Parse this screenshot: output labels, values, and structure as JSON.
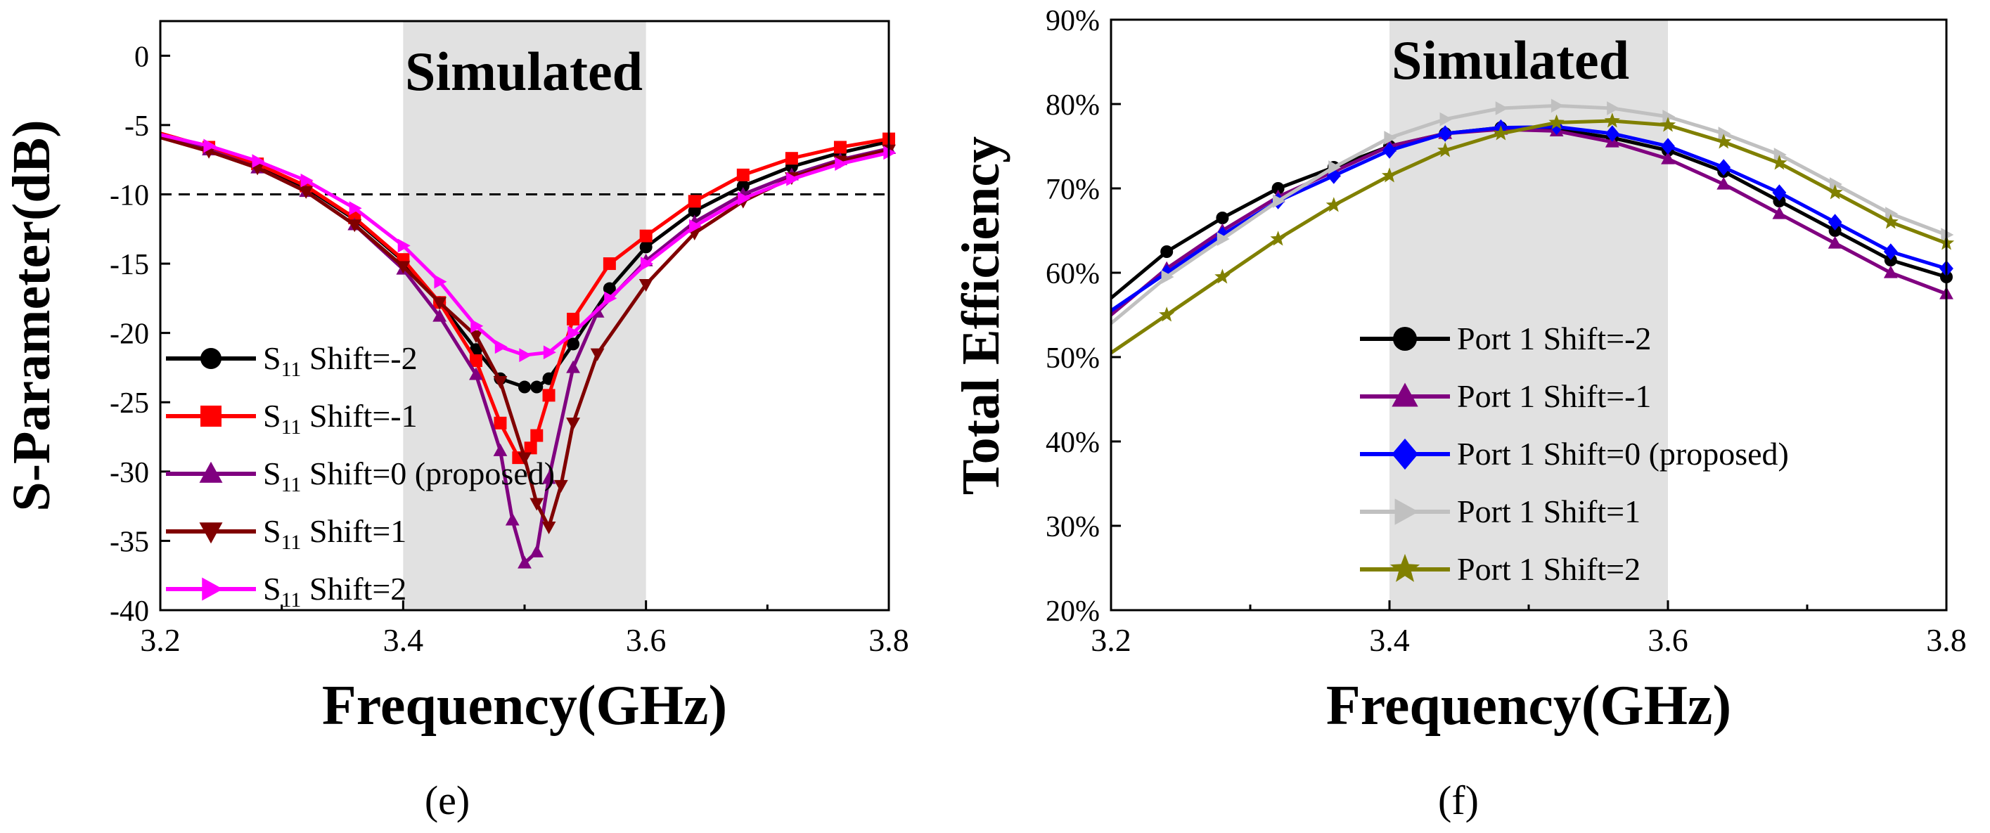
{
  "chart_data": [
    {
      "id": "e",
      "type": "line",
      "caption": "(e)",
      "annotation": "Simulated",
      "xlabel": "Frequency(GHz)",
      "ylabel": "S-Parameter(dB)",
      "xlim": [
        3.2,
        3.8
      ],
      "ylim": [
        -40,
        2.5
      ],
      "xticks": [
        3.2,
        3.4,
        3.6,
        3.8
      ],
      "xtick_labels": [
        "3.2",
        "3.4",
        "3.6",
        "3.8"
      ],
      "yticks": [
        0,
        -5,
        -10,
        -15,
        -20,
        -25,
        -30,
        -35,
        -40
      ],
      "ytick_labels": [
        "0",
        "-5",
        "-10",
        "-15",
        "-20",
        "-25",
        "-30",
        "-35",
        "-40"
      ],
      "shaded_band": [
        3.4,
        3.6
      ],
      "reference_line": -10,
      "legend_position": "middle-left",
      "series": [
        {
          "name": "S11 Shift=-2",
          "prefix": "S",
          "sub": "11",
          "suffix": " Shift=-2",
          "color": "#000000",
          "marker": "circle",
          "x": [
            3.2,
            3.24,
            3.28,
            3.32,
            3.36,
            3.4,
            3.43,
            3.46,
            3.48,
            3.5,
            3.51,
            3.52,
            3.54,
            3.57,
            3.6,
            3.64,
            3.68,
            3.72,
            3.76,
            3.8
          ],
          "y": [
            -5.8,
            -6.7,
            -7.9,
            -9.5,
            -11.8,
            -14.8,
            -17.8,
            -21.2,
            -23.3,
            -23.9,
            -23.9,
            -23.3,
            -20.8,
            -16.8,
            -13.8,
            -11.2,
            -9.4,
            -8.0,
            -7.0,
            -6.2
          ]
        },
        {
          "name": "S11 Shift=-1",
          "prefix": "S",
          "sub": "11",
          "suffix": " Shift=-1",
          "color": "#ff0000",
          "marker": "square",
          "x": [
            3.2,
            3.24,
            3.28,
            3.32,
            3.36,
            3.4,
            3.43,
            3.46,
            3.48,
            3.495,
            3.505,
            3.51,
            3.52,
            3.54,
            3.57,
            3.6,
            3.64,
            3.68,
            3.72,
            3.76,
            3.8
          ],
          "y": [
            -5.6,
            -6.6,
            -7.8,
            -9.4,
            -11.7,
            -14.7,
            -17.8,
            -22.0,
            -26.5,
            -29.0,
            -28.3,
            -27.4,
            -24.5,
            -19.0,
            -15.0,
            -13.0,
            -10.5,
            -8.6,
            -7.4,
            -6.6,
            -6.0
          ]
        },
        {
          "name": "S11 Shift=0 (proposed)",
          "prefix": "S",
          "sub": "11",
          "suffix": " Shift=0 (proposed)",
          "color": "#800080",
          "marker": "triangle",
          "x": [
            3.2,
            3.24,
            3.28,
            3.32,
            3.36,
            3.4,
            3.43,
            3.46,
            3.48,
            3.49,
            3.5,
            3.51,
            3.52,
            3.54,
            3.56,
            3.6,
            3.64,
            3.68,
            3.72,
            3.76,
            3.8
          ],
          "y": [
            -5.8,
            -6.8,
            -8.1,
            -9.8,
            -12.2,
            -15.4,
            -18.8,
            -23.0,
            -28.5,
            -33.5,
            -36.6,
            -35.8,
            -30.5,
            -22.5,
            -18.5,
            -14.8,
            -12.0,
            -10.0,
            -8.6,
            -7.5,
            -6.7
          ]
        },
        {
          "name": "S11 Shift=1",
          "prefix": "S",
          "sub": "11",
          "suffix": " Shift=1",
          "color": "#800000",
          "marker": "triangle-down",
          "x": [
            3.2,
            3.24,
            3.28,
            3.32,
            3.36,
            3.4,
            3.43,
            3.46,
            3.48,
            3.5,
            3.51,
            3.52,
            3.53,
            3.54,
            3.56,
            3.6,
            3.64,
            3.68,
            3.72,
            3.76,
            3.8
          ],
          "y": [
            -5.9,
            -6.9,
            -8.1,
            -9.8,
            -12.2,
            -15.2,
            -17.8,
            -20.2,
            -23.5,
            -29.0,
            -32.3,
            -34.0,
            -31.0,
            -26.5,
            -21.5,
            -16.5,
            -12.8,
            -10.5,
            -8.8,
            -7.6,
            -6.8
          ]
        },
        {
          "name": "S11 Shift=2",
          "prefix": "S",
          "sub": "11",
          "suffix": " Shift=2",
          "color": "#ff00ff",
          "marker": "triangle-right",
          "x": [
            3.2,
            3.24,
            3.28,
            3.32,
            3.36,
            3.4,
            3.43,
            3.46,
            3.48,
            3.5,
            3.52,
            3.54,
            3.57,
            3.6,
            3.64,
            3.68,
            3.72,
            3.76,
            3.8
          ],
          "y": [
            -5.7,
            -6.5,
            -7.6,
            -9.0,
            -11.0,
            -13.7,
            -16.3,
            -19.5,
            -21.0,
            -21.6,
            -21.4,
            -20.0,
            -17.5,
            -15.0,
            -12.3,
            -10.3,
            -8.9,
            -7.8,
            -7.0
          ]
        }
      ]
    },
    {
      "id": "f",
      "type": "line",
      "caption": "(f)",
      "annotation": "Simulated",
      "xlabel": "Frequency(GHz)",
      "ylabel": "Total Efficiency",
      "xlim": [
        3.2,
        3.8
      ],
      "ylim": [
        20,
        90
      ],
      "xticks": [
        3.2,
        3.4,
        3.6,
        3.8
      ],
      "xtick_labels": [
        "3.2",
        "3.4",
        "3.6",
        "3.8"
      ],
      "yticks": [
        20,
        30,
        40,
        50,
        60,
        70,
        80,
        90
      ],
      "ytick_labels": [
        "20%",
        "30%",
        "40%",
        "50%",
        "60%",
        "70%",
        "80%",
        "90%"
      ],
      "shaded_band": [
        3.4,
        3.6
      ],
      "legend_position": "middle-center",
      "series": [
        {
          "name": "Port 1 Shift=-2",
          "color": "#000000",
          "marker": "circle",
          "x": [
            3.2,
            3.24,
            3.28,
            3.32,
            3.36,
            3.4,
            3.44,
            3.48,
            3.52,
            3.56,
            3.6,
            3.64,
            3.68,
            3.72,
            3.76,
            3.8
          ],
          "y": [
            57.0,
            62.5,
            66.5,
            70.0,
            72.5,
            75.0,
            76.5,
            77.2,
            77.0,
            76.0,
            74.5,
            72.0,
            68.5,
            65.0,
            61.5,
            59.5
          ]
        },
        {
          "name": "Port 1 Shift=-1",
          "color": "#800080",
          "marker": "triangle",
          "x": [
            3.2,
            3.24,
            3.28,
            3.32,
            3.36,
            3.4,
            3.44,
            3.48,
            3.52,
            3.56,
            3.6,
            3.64,
            3.68,
            3.72,
            3.76,
            3.8
          ],
          "y": [
            55.0,
            60.5,
            65.0,
            69.0,
            72.0,
            75.0,
            76.5,
            77.0,
            76.8,
            75.5,
            73.5,
            70.5,
            67.0,
            63.5,
            60.0,
            57.5
          ]
        },
        {
          "name": "Port 1 Shift=0 (proposed)",
          "color": "#0000ff",
          "marker": "diamond",
          "x": [
            3.2,
            3.24,
            3.28,
            3.32,
            3.36,
            3.4,
            3.44,
            3.48,
            3.52,
            3.56,
            3.6,
            3.64,
            3.68,
            3.72,
            3.76,
            3.8
          ],
          "y": [
            55.5,
            60.0,
            64.5,
            68.5,
            71.5,
            74.5,
            76.5,
            77.2,
            77.3,
            76.5,
            75.0,
            72.5,
            69.5,
            66.0,
            62.5,
            60.5
          ]
        },
        {
          "name": "Port 1 Shift=1",
          "color": "#c0c0c0",
          "marker": "triangle-right",
          "x": [
            3.2,
            3.24,
            3.28,
            3.32,
            3.36,
            3.4,
            3.44,
            3.48,
            3.52,
            3.56,
            3.6,
            3.64,
            3.68,
            3.72,
            3.76,
            3.8
          ],
          "y": [
            54.0,
            59.5,
            64.0,
            68.5,
            72.5,
            76.0,
            78.2,
            79.5,
            79.8,
            79.5,
            78.5,
            76.5,
            74.0,
            70.5,
            67.0,
            64.5
          ]
        },
        {
          "name": "Port 1 Shift=2",
          "color": "#808000",
          "marker": "star",
          "x": [
            3.2,
            3.24,
            3.28,
            3.32,
            3.36,
            3.4,
            3.44,
            3.48,
            3.52,
            3.56,
            3.6,
            3.64,
            3.68,
            3.72,
            3.76,
            3.8
          ],
          "y": [
            50.5,
            55.0,
            59.5,
            64.0,
            68.0,
            71.5,
            74.5,
            76.5,
            77.8,
            78.0,
            77.5,
            75.5,
            73.0,
            69.5,
            66.0,
            63.5
          ]
        }
      ]
    }
  ]
}
